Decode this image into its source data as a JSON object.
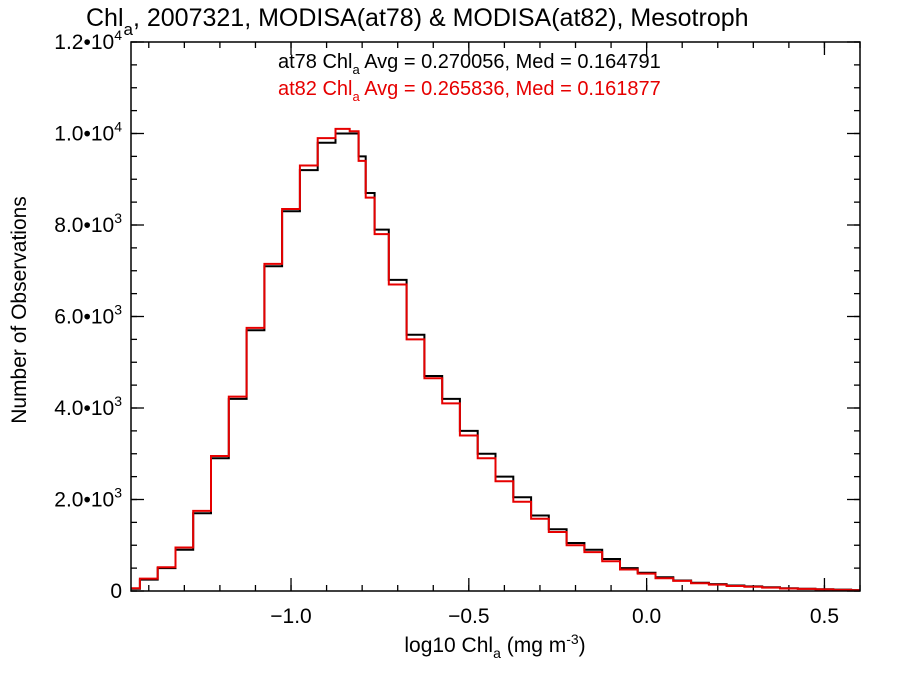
{
  "chart_data": {
    "type": "line",
    "title": {
      "pre": "Chl",
      "sub": "a",
      "post": ", 2007321, MODISA(at78) & MODISA(at82), Mesotroph"
    },
    "xlabel": {
      "pre": "log10 Chl",
      "sub": "a",
      "mid": " (mg m",
      "sup": "-3",
      "post": ")"
    },
    "ylabel": "Number of Observations",
    "xlim": [
      -1.45,
      0.6
    ],
    "ylim": [
      0,
      12000
    ],
    "x_ticks": [
      {
        "value": -1.0,
        "label": "−1.0"
      },
      {
        "value": -0.5,
        "label": "−0.5"
      },
      {
        "value": 0.0,
        "label": "0.0"
      },
      {
        "value": 0.5,
        "label": "0.5"
      }
    ],
    "y_ticks": [
      {
        "value": 0,
        "mant": "0",
        "exp": ""
      },
      {
        "value": 2000,
        "mant": "2.0•10",
        "exp": "3"
      },
      {
        "value": 4000,
        "mant": "4.0•10",
        "exp": "3"
      },
      {
        "value": 6000,
        "mant": "6.0•10",
        "exp": "3"
      },
      {
        "value": 8000,
        "mant": "8.0•10",
        "exp": "3"
      },
      {
        "value": 10000,
        "mant": "1.0•10",
        "exp": "4"
      },
      {
        "value": 12000,
        "mant": "1.2•10",
        "exp": "4"
      }
    ],
    "x_minor_step": 0.1,
    "y_minor_step": 500,
    "annotations": [
      {
        "color": "#000000",
        "pre": "at78 Chl",
        "sub": "a",
        "post": " Avg = 0.270056, Med = 0.164791"
      },
      {
        "color": "#e60000",
        "pre": "at82 Chl",
        "sub": "a",
        "post": " Avg = 0.265836, Med = 0.161877"
      }
    ],
    "series": [
      {
        "color": "#000000",
        "x": [
          -1.45,
          -1.4,
          -1.35,
          -1.3,
          -1.25,
          -1.2,
          -1.15,
          -1.1,
          -1.05,
          -1.0,
          -0.95,
          -0.9,
          -0.85,
          -0.82,
          -0.8,
          -0.78,
          -0.75,
          -0.7,
          -0.65,
          -0.6,
          -0.55,
          -0.5,
          -0.45,
          -0.4,
          -0.35,
          -0.3,
          -0.25,
          -0.2,
          -0.15,
          -0.1,
          -0.05,
          0.0,
          0.05,
          0.1,
          0.15,
          0.2,
          0.25,
          0.3,
          0.35,
          0.4,
          0.45,
          0.5,
          0.55,
          0.6
        ],
        "y": [
          50,
          250,
          500,
          900,
          1700,
          2900,
          4200,
          5700,
          7100,
          8300,
          9200,
          9800,
          10000,
          10000,
          9500,
          8700,
          7900,
          6800,
          5600,
          4700,
          4200,
          3500,
          3000,
          2500,
          2050,
          1650,
          1350,
          1050,
          900,
          700,
          500,
          400,
          300,
          230,
          180,
          150,
          120,
          100,
          80,
          60,
          50,
          40,
          30,
          20
        ]
      },
      {
        "color": "#e60000",
        "x": [
          -1.45,
          -1.4,
          -1.35,
          -1.3,
          -1.25,
          -1.2,
          -1.15,
          -1.1,
          -1.05,
          -1.0,
          -0.95,
          -0.9,
          -0.85,
          -0.82,
          -0.8,
          -0.78,
          -0.75,
          -0.7,
          -0.65,
          -0.6,
          -0.55,
          -0.5,
          -0.45,
          -0.4,
          -0.35,
          -0.3,
          -0.25,
          -0.2,
          -0.15,
          -0.1,
          -0.05,
          0.0,
          0.05,
          0.1,
          0.15,
          0.2,
          0.25,
          0.3,
          0.35,
          0.4,
          0.45,
          0.5,
          0.55,
          0.6
        ],
        "y": [
          60,
          270,
          520,
          950,
          1750,
          2950,
          4250,
          5750,
          7150,
          8350,
          9300,
          9900,
          10100,
          10050,
          9400,
          8600,
          7800,
          6700,
          5500,
          4650,
          4100,
          3400,
          2900,
          2400,
          1950,
          1580,
          1290,
          1000,
          850,
          650,
          470,
          380,
          280,
          220,
          170,
          140,
          110,
          95,
          75,
          55,
          45,
          35,
          25,
          15
        ]
      }
    ]
  }
}
